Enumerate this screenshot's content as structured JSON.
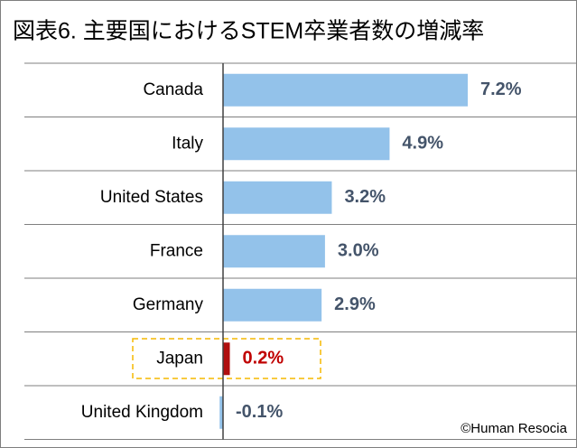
{
  "chart_data": {
    "type": "hbar",
    "title": "図表6. 主要国におけるSTEM卒業者数の増減率",
    "categories": [
      "Canada",
      "Italy",
      "United States",
      "France",
      "Germany",
      "Japan",
      "United Kingdom"
    ],
    "values": [
      7.2,
      4.9,
      3.2,
      3.0,
      2.9,
      0.2,
      -0.1
    ],
    "value_labels": [
      "7.2%",
      "4.9%",
      "3.2%",
      "3.0%",
      "2.9%",
      "0.2%",
      "-0.1%"
    ],
    "colors": [
      "#93c2ea",
      "#93c2ea",
      "#93c2ea",
      "#93c2ea",
      "#93c2ea",
      "#b00f0f",
      "#93c2ea"
    ],
    "value_label_colors": [
      "#44546a",
      "#44546a",
      "#44546a",
      "#44546a",
      "#44546a",
      "#c00000",
      "#44546a"
    ],
    "source": "©Human Resocia"
  }
}
